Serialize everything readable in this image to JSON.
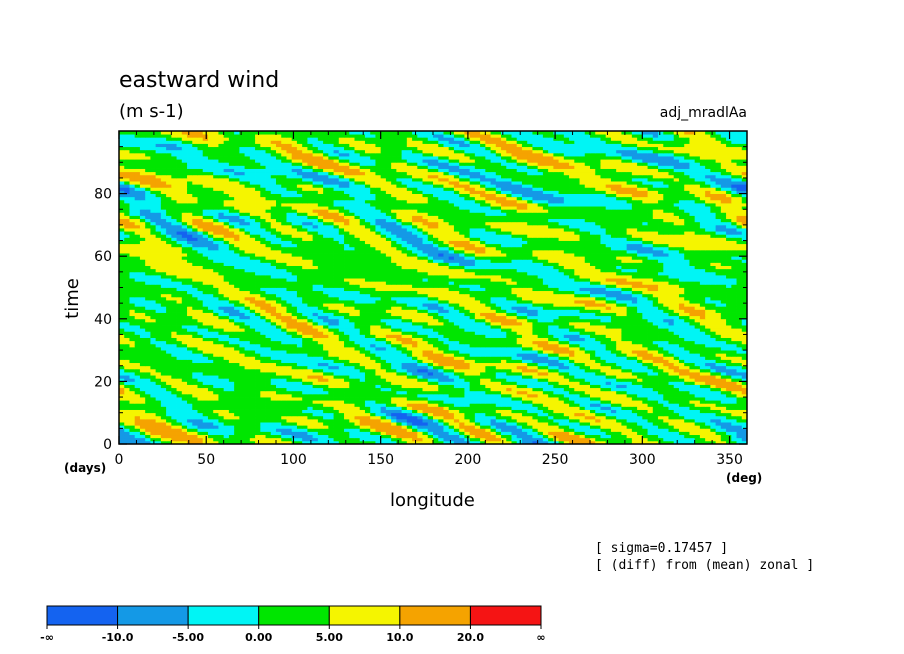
{
  "title": "eastward wind",
  "units": "(m s-1)",
  "run_name": "adj_mradlAa",
  "notes": [
    "[ sigma=0.17457 ]",
    "[ (diff) from (mean) zonal ]"
  ],
  "colors": {
    "levels": [
      "#1463f0",
      "#1499e6",
      "#00f5f5",
      "#00e600",
      "#f5f500",
      "#f5a300",
      "#f51414"
    ],
    "frame": "#000000"
  },
  "chart_data": {
    "type": "heatmap",
    "title": "eastward wind",
    "subtitle": "(m s-1)",
    "xlabel": "longitude",
    "ylabel": "time",
    "x_unit": "(deg)",
    "y_unit": "(days)",
    "xlim": [
      0,
      360
    ],
    "ylim": [
      0,
      100
    ],
    "x_ticks": [
      0,
      50,
      100,
      150,
      200,
      250,
      300,
      350
    ],
    "y_ticks": [
      0,
      20,
      40,
      60,
      80
    ],
    "colorbar": {
      "labels": [
        "-∞",
        "-10.0",
        "-5.00",
        "0.00",
        "5.00",
        "10.0",
        "20.0",
        "∞"
      ],
      "bounds": [
        -10,
        -5,
        0,
        5,
        10,
        20
      ],
      "placement": "bottom-left"
    },
    "grid": false
  }
}
